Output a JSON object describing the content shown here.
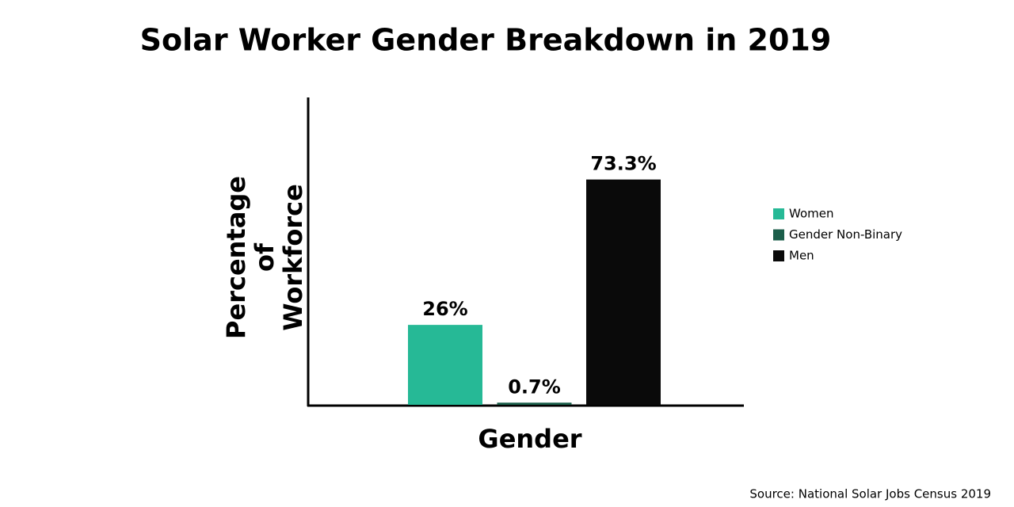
{
  "chart_data": {
    "type": "bar",
    "title": "Solar Worker Gender Breakdown in 2019",
    "x_label": "Gender",
    "y_label": "Percentage of Workforce",
    "source": "Source: National Solar Jobs Census 2019",
    "categories": [
      null
    ],
    "series": [
      {
        "name": "Women",
        "color": "#26b996",
        "values": [
          26
        ],
        "value_labels": [
          "26%"
        ]
      },
      {
        "name": "Gender Non-Binary",
        "color": "#1b5e4a",
        "values": [
          0.7
        ],
        "value_labels": [
          "0.7%"
        ]
      },
      {
        "name": "Men",
        "color": "#0a0a0a",
        "values": [
          73.3
        ],
        "value_labels": [
          "73.3%"
        ]
      }
    ],
    "ylim": [
      0,
      100
    ],
    "legend": "right"
  }
}
